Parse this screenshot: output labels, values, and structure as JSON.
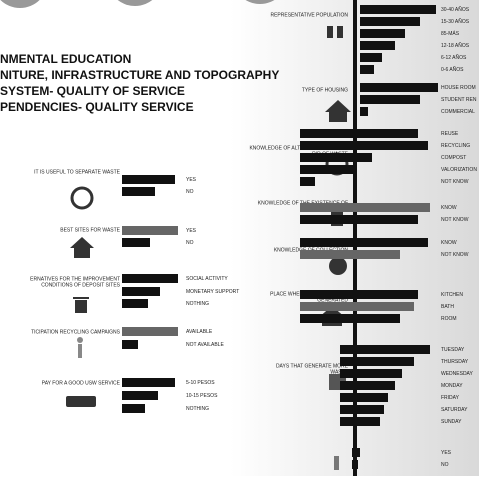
{
  "headings": [
    "NMENTAL EDUCATION",
    "NITURE, INFRASTRUCTURE AND TOPOGRAPHY",
    "SYSTEM- QUALITY OF SERVICE",
    "PENDENCIES- QUALITY SERVICE"
  ],
  "chart_data": [
    {
      "type": "bar",
      "title": [
        "IT IS USEFUL TO SEPARATE WASTE"
      ],
      "categories": [
        "YES",
        "NO"
      ],
      "values": [
        53,
        33
      ],
      "colors": [
        "#111",
        "#111"
      ]
    },
    {
      "type": "bar",
      "title": [
        "BEST SITES FOR WASTE"
      ],
      "categories": [
        "YES",
        "NO"
      ],
      "values": [
        56,
        28
      ],
      "colors": [
        "#666",
        "#111"
      ]
    },
    {
      "type": "bar",
      "title": [
        "ERNATIVES FOR THE IMPROVEMENT",
        "CONDITIONS OF DEPOSIT SITES"
      ],
      "categories": [
        "SOCIAL ACTIVITY",
        "MONETARY SUPPORT",
        "NOTHING"
      ],
      "values": [
        56,
        38,
        26
      ],
      "colors": [
        "#111",
        "#111",
        "#111"
      ]
    },
    {
      "type": "bar",
      "title": [
        "TICIPATION RECYCLING CAMPAIGNS"
      ],
      "categories": [
        "AVAILABLE",
        "NOT AVAILABLE"
      ],
      "values": [
        56,
        16
      ],
      "colors": [
        "#666",
        "#111"
      ]
    },
    {
      "type": "bar",
      "title": [
        "PAY FOR A GOOD USW SERVICE"
      ],
      "categories": [
        "5-10 PESOS",
        "10-15 PESOS",
        "NOTHING"
      ],
      "values": [
        53,
        36,
        23
      ],
      "colors": [
        "#111",
        "#111",
        "#111"
      ]
    },
    {
      "type": "bar",
      "title": [
        "REPRESENTATIVE POPULATION"
      ],
      "categories": [
        "30-40 AÑOS",
        "15-30 AÑOS",
        "85-MÁS",
        "12-18 AÑOS",
        "6-12 AÑOS",
        "0-6 AÑOS"
      ],
      "values": [
        76,
        60,
        45,
        35,
        22,
        14
      ],
      "colors": [
        "#111",
        "#111",
        "#111",
        "#111",
        "#111",
        "#111"
      ]
    },
    {
      "type": "bar",
      "title": [
        "TYPE OF HOUSING"
      ],
      "categories": [
        "HOUSE ROOM",
        "STUDENT REN",
        "COMMERCIAL"
      ],
      "values": [
        78,
        60,
        8
      ],
      "colors": [
        "#111",
        "#111",
        "#111"
      ]
    },
    {
      "type": "bar",
      "title": [
        "KNOWLEDGE OF ALTERNATIVES TO GET",
        "RID OF WASTE"
      ],
      "categories": [
        "REUSE",
        "RECYCLING",
        "COMPOST",
        "VALORIZATION",
        "NOT KNOW"
      ],
      "values": [
        118,
        128,
        72,
        55,
        15
      ],
      "colors": [
        "#111",
        "#111",
        "#111",
        "#111",
        "#111"
      ]
    },
    {
      "type": "bar",
      "title": [
        "KNOWLEDGE OF THE EXISTENCE OF",
        "CONTAINERS"
      ],
      "categories": [
        "KNOW",
        "NOT KNOW"
      ],
      "values": [
        130,
        118
      ],
      "colors": [
        "#666",
        "#111"
      ]
    },
    {
      "type": "bar",
      "title": [
        "KNOWLEDGE OF COLLECTION",
        "SCHEDULE"
      ],
      "categories": [
        "KNOW",
        "NOT KNOW"
      ],
      "values": [
        128,
        100
      ],
      "colors": [
        "#111",
        "#666"
      ]
    },
    {
      "type": "bar",
      "title": [
        "PLACE WHERE MORE WASTE IS",
        "GENERATED"
      ],
      "categories": [
        "KITCHEN",
        "BATH",
        "ROOM"
      ],
      "values": [
        118,
        114,
        100
      ],
      "colors": [
        "#111",
        "#666",
        "#111"
      ]
    },
    {
      "type": "bar",
      "title": [
        "DAYS THAT GENERATE MORE",
        "WASTE"
      ],
      "categories": [
        "TUESDAY",
        "THURSDAY",
        "WEDNESDAY",
        "MONDAY",
        "FRIDAY",
        "SATURDAY",
        "SUNDAY"
      ],
      "values": [
        90,
        74,
        62,
        55,
        48,
        44,
        40
      ],
      "colors": [
        "#111",
        "#111",
        "#111",
        "#111",
        "#111",
        "#111",
        "#111"
      ]
    },
    {
      "type": "bar",
      "categories": [
        "YES",
        "NO"
      ],
      "values": [
        8,
        6
      ],
      "colors": [
        "#111",
        "#111"
      ]
    }
  ]
}
